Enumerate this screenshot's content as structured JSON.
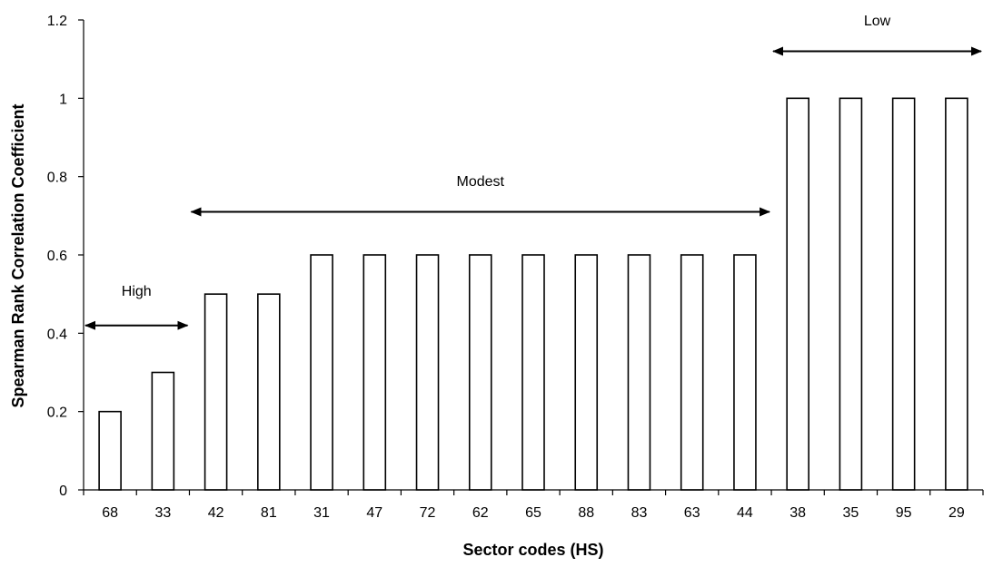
{
  "chart_data": {
    "type": "bar",
    "categories": [
      "68",
      "33",
      "42",
      "81",
      "31",
      "47",
      "72",
      "62",
      "65",
      "88",
      "83",
      "63",
      "44",
      "38",
      "35",
      "95",
      "29"
    ],
    "values": [
      0.2,
      0.3,
      0.5,
      0.5,
      0.6,
      0.6,
      0.6,
      0.6,
      0.6,
      0.6,
      0.6,
      0.6,
      0.6,
      1.0,
      1.0,
      1.0,
      1.0
    ],
    "title": "",
    "xlabel": "Sector codes (HS)",
    "ylabel": "Spearman Rank Correlation Coefficient",
    "ylim": [
      0,
      1.2
    ],
    "yticks": [
      "0",
      "0.2",
      "0.4",
      "0.6",
      "0.8",
      "1",
      "1.2"
    ],
    "grid": false,
    "bar_fill": "#ffffff",
    "bar_stroke": "#000000",
    "annotations": [
      {
        "label": "High",
        "from_category": "68",
        "to_category": "33",
        "y": 0.42,
        "label_y": 0.51
      },
      {
        "label": "Modest",
        "from_category": "42",
        "to_category": "44",
        "y": 0.71,
        "label_y": 0.79
      },
      {
        "label": "Low",
        "from_category": "38",
        "to_category": "29",
        "y": 1.12,
        "label_y": 1.2
      }
    ]
  }
}
